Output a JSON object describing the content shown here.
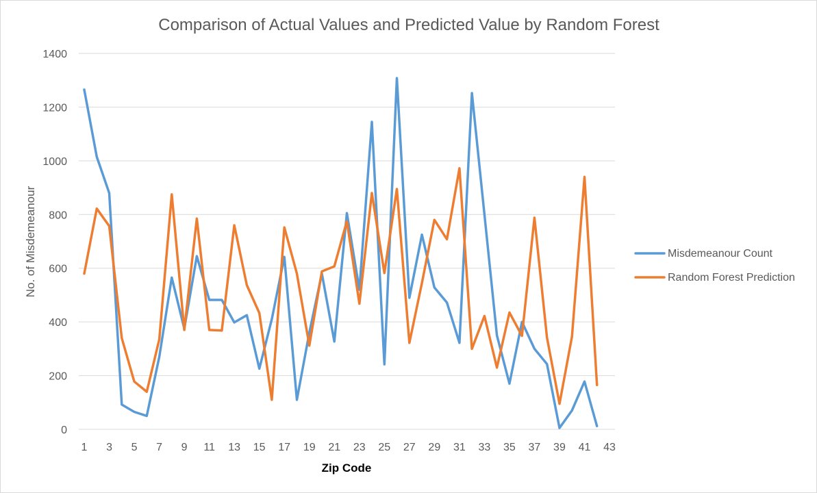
{
  "chart_data": {
    "type": "line",
    "title": "Comparison of Actual Values and Predicted Value by Random Forest",
    "xlabel": "Zip Code",
    "ylabel": "No. of Misdemeanour",
    "ylim": [
      0,
      1400
    ],
    "yticks": [
      0,
      200,
      400,
      600,
      800,
      1000,
      1200,
      1400
    ],
    "xlim": [
      1,
      43
    ],
    "xticks": [
      1,
      3,
      5,
      7,
      9,
      11,
      13,
      15,
      17,
      19,
      21,
      23,
      25,
      27,
      29,
      31,
      33,
      35,
      37,
      39,
      41,
      43
    ],
    "grid": "horizontal",
    "legend_position": "right",
    "x": [
      1,
      2,
      3,
      4,
      5,
      6,
      7,
      8,
      9,
      10,
      11,
      12,
      13,
      14,
      15,
      16,
      17,
      18,
      19,
      20,
      21,
      22,
      23,
      24,
      25,
      26,
      27,
      28,
      29,
      30,
      31,
      32,
      33,
      34,
      35,
      36,
      37,
      38,
      39,
      40,
      41,
      42
    ],
    "series": [
      {
        "name": "Misdemeanour Count",
        "color": "#5b9bd5",
        "values": [
          1265,
          1015,
          880,
          92,
          65,
          50,
          270,
          565,
          375,
          645,
          482,
          482,
          398,
          425,
          226,
          410,
          642,
          110,
          360,
          580,
          327,
          805,
          520,
          1145,
          242,
          1308,
          490,
          725,
          528,
          472,
          322,
          1252,
          800,
          350,
          170,
          400,
          300,
          243,
          5,
          70,
          178,
          12
        ]
      },
      {
        "name": "Random Forest Prediction",
        "color": "#ed7d31",
        "values": [
          580,
          822,
          757,
          340,
          178,
          140,
          335,
          875,
          370,
          785,
          370,
          368,
          760,
          537,
          433,
          110,
          752,
          580,
          312,
          588,
          607,
          775,
          468,
          880,
          582,
          895,
          322,
          545,
          780,
          708,
          972,
          300,
          422,
          230,
          435,
          348,
          788,
          342,
          95,
          345,
          940,
          165
        ]
      }
    ]
  }
}
